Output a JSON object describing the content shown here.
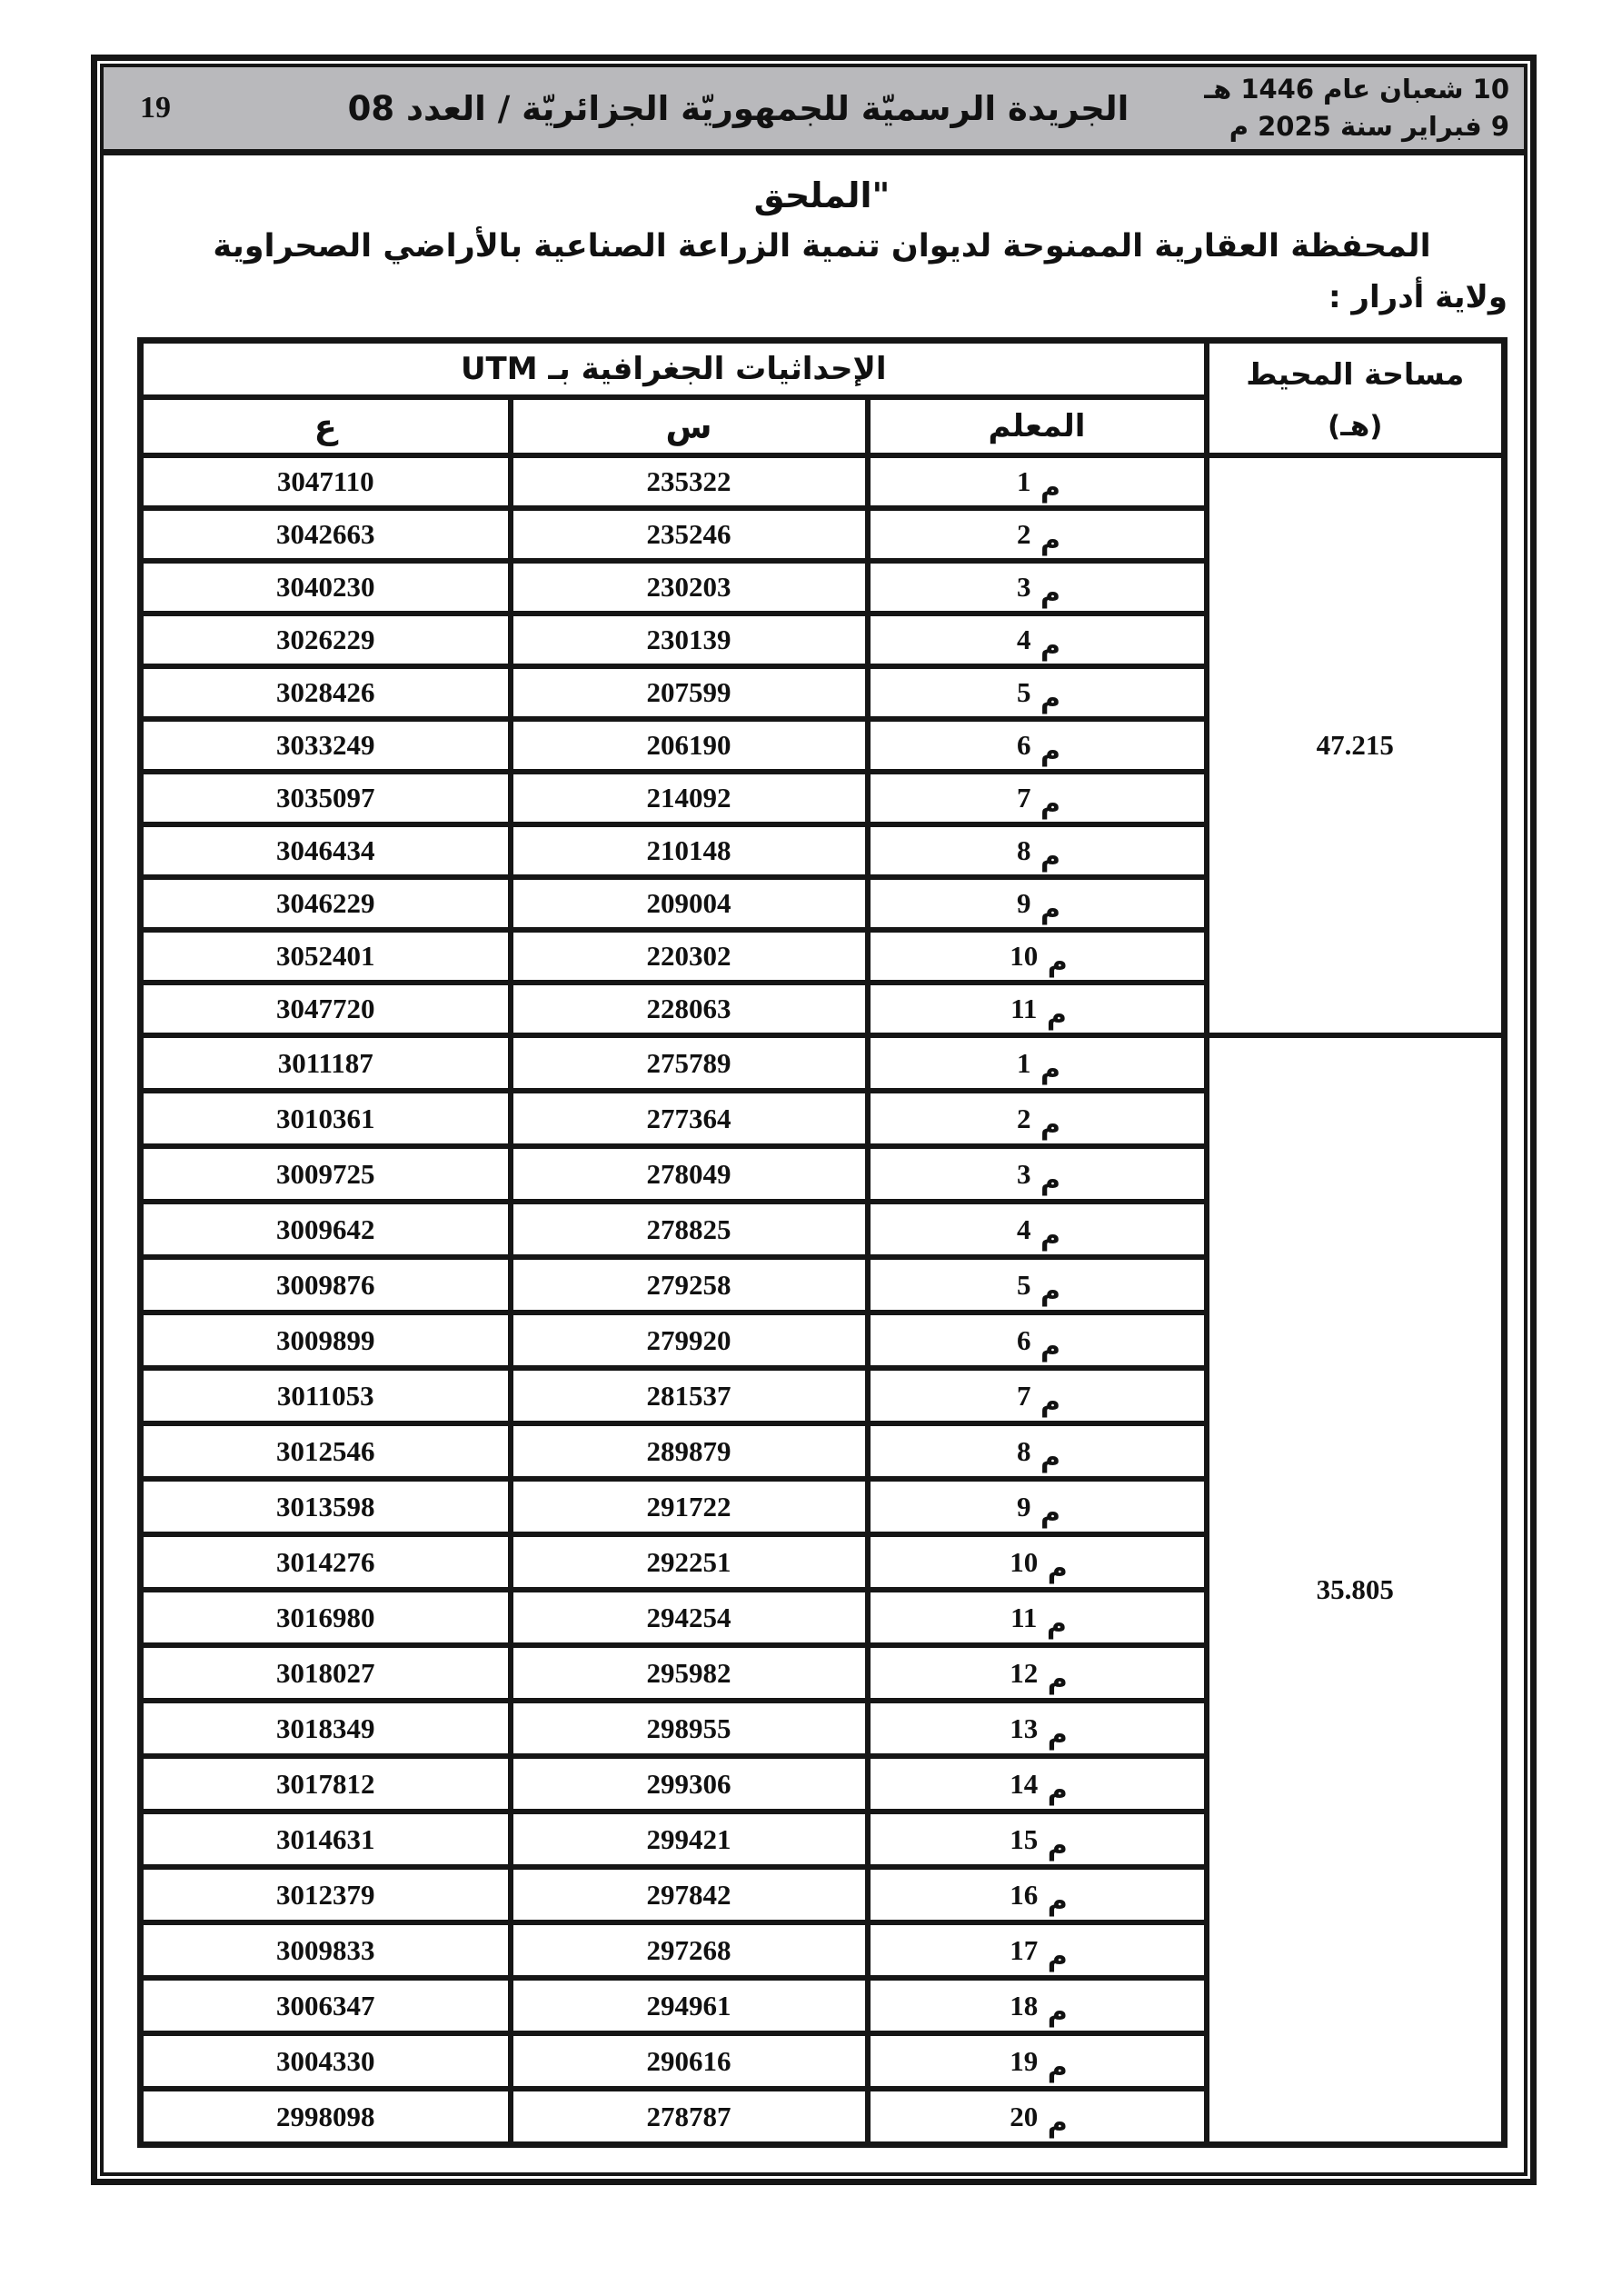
{
  "header": {
    "page_number": "19",
    "journal_title": "الجريدة الرسميّة للجمهوريّة الجزائريّة / العدد 08",
    "date_hijri": "10 شعبان عام 1446 هـ",
    "date_gregorian": "9 فبراير سنة 2025 م"
  },
  "titles": {
    "annex_title": "\"الملحق",
    "subtitle": "المحفظة العقارية الممنوحة لديوان تنمية الزراعة الصناعية بالأراضي الصحراوية",
    "wilaya_label": "ولاية أدرار :"
  },
  "table": {
    "utm_header": "الإحداثيات الجغرافية بـ UTM",
    "area_header_line1": "مساحة المحيط",
    "area_header_line2": "(هـ)",
    "col_marker": "المعلم",
    "col_x": "س",
    "col_y": "ع",
    "groups": [
      {
        "area": "47.215",
        "rows": [
          {
            "marker": "م 1",
            "x": "235322",
            "y": "3047110"
          },
          {
            "marker": "م 2",
            "x": "235246",
            "y": "3042663"
          },
          {
            "marker": "م 3",
            "x": "230203",
            "y": "3040230"
          },
          {
            "marker": "م 4",
            "x": "230139",
            "y": "3026229"
          },
          {
            "marker": "م 5",
            "x": "207599",
            "y": "3028426"
          },
          {
            "marker": "م 6",
            "x": "206190",
            "y": "3033249"
          },
          {
            "marker": "م 7",
            "x": "214092",
            "y": "3035097"
          },
          {
            "marker": "م 8",
            "x": "210148",
            "y": "3046434"
          },
          {
            "marker": "م 9",
            "x": "209004",
            "y": "3046229"
          },
          {
            "marker": "م 10",
            "x": "220302",
            "y": "3052401"
          },
          {
            "marker": "م 11",
            "x": "228063",
            "y": "3047720"
          }
        ]
      },
      {
        "area": "35.805",
        "rows": [
          {
            "marker": "م 1",
            "x": "275789",
            "y": "3011187"
          },
          {
            "marker": "م 2",
            "x": "277364",
            "y": "3010361"
          },
          {
            "marker": "م 3",
            "x": "278049",
            "y": "3009725"
          },
          {
            "marker": "م 4",
            "x": "278825",
            "y": "3009642"
          },
          {
            "marker": "م 5",
            "x": "279258",
            "y": "3009876"
          },
          {
            "marker": "م 6",
            "x": "279920",
            "y": "3009899"
          },
          {
            "marker": "م 7",
            "x": "281537",
            "y": "3011053"
          },
          {
            "marker": "م 8",
            "x": "289879",
            "y": "3012546"
          },
          {
            "marker": "م 9",
            "x": "291722",
            "y": "3013598"
          },
          {
            "marker": "م 10",
            "x": "292251",
            "y": "3014276"
          },
          {
            "marker": "م 11",
            "x": "294254",
            "y": "3016980"
          },
          {
            "marker": "م 12",
            "x": "295982",
            "y": "3018027"
          },
          {
            "marker": "م 13",
            "x": "298955",
            "y": "3018349"
          },
          {
            "marker": "م 14",
            "x": "299306",
            "y": "3017812"
          },
          {
            "marker": "م 15",
            "x": "299421",
            "y": "3014631"
          },
          {
            "marker": "م 16",
            "x": "297842",
            "y": "3012379"
          },
          {
            "marker": "م 17",
            "x": "297268",
            "y": "3009833"
          },
          {
            "marker": "م 18",
            "x": "294961",
            "y": "3006347"
          },
          {
            "marker": "م 19",
            "x": "290616",
            "y": "3004330"
          },
          {
            "marker": "م 20",
            "x": "278787",
            "y": "2998098"
          }
        ]
      }
    ]
  }
}
